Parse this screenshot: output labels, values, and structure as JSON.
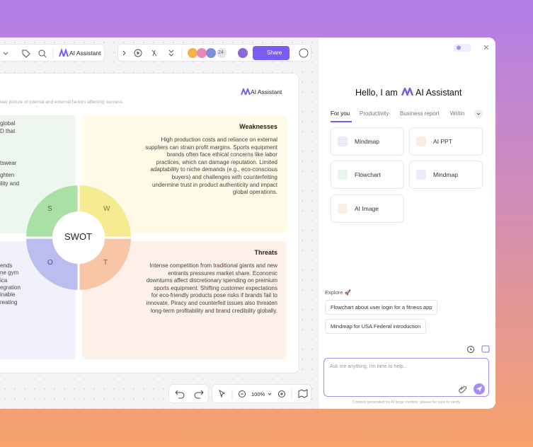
{
  "toolbar": {
    "ai_label": "AI Assistant",
    "collaborator_count": "24",
    "share": "Share"
  },
  "canvas": {
    "subtitle": "lear picture of internal and external factors affecting success.",
    "brand": "AI Assistant",
    "center": "SWOT",
    "letters": [
      "S",
      "W",
      "O",
      "T"
    ],
    "strengths": {
      "lines": [
        "global",
        "D that",
        "tswear",
        "ghten",
        "ility and"
      ]
    },
    "weaknesses": {
      "title": "Weaknesses",
      "lines": [
        "High production costs and reliance on external",
        "suppliers can strain profit margins. Sports equipment",
        "brands often face ethical concerns like labor",
        "practices, which can damage reputation. Limited",
        "adaptability to niche demands (e.g., eco-conscious",
        "buyers) and challenges with counterfeiting",
        "undermine trust in product authenticity and impact",
        "global operations."
      ]
    },
    "opportunities": {
      "lines": [
        "ends",
        "ne gym",
        "ica",
        "egration",
        "inable",
        "reating"
      ]
    },
    "threats": {
      "title": "Threats",
      "lines": [
        "Intense competition from traditional giants and new",
        "entrants pressures market share. Economic",
        "downturns affect discretionary spending on premium",
        "sports equipment. Shifting customer expectations",
        "for eco-friendly products pose risks if brands fail to",
        "innovate. Piracy and counterfeit issues also threaten",
        "long-term profitability and brand credibility globally."
      ]
    },
    "zoom": "100%"
  },
  "assistant": {
    "greeting": "Hello, I am",
    "name": "AI Assistant",
    "tabs": [
      "For you",
      "Productivity",
      "Business report",
      "Writin"
    ],
    "cards": [
      "Mindmap",
      "AI PPT",
      "Flowchart",
      "Mindmap",
      "AI Image"
    ],
    "explore": "Explore 🚀",
    "suggestions": [
      "Flowchart about user login for a fitness app",
      "Mindmap for USA Federal introduction"
    ],
    "placeholder": "Ask me anything, I'm here to help...",
    "footer": "Content generated by AI large models, please be sure to verify."
  }
}
